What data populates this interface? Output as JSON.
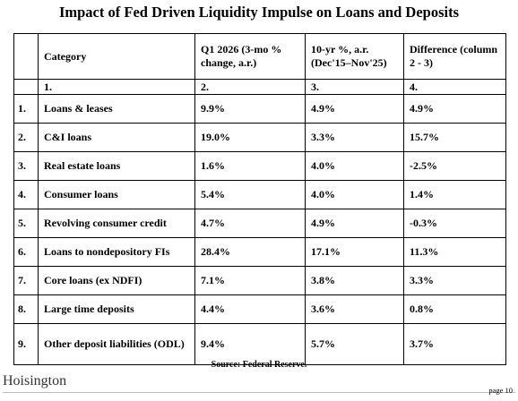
{
  "title": "Impact of Fed Driven Liquidity Impulse on Loans and Deposits",
  "table": {
    "header": [
      "Category",
      "Q1 2026  (3-mo % change, a.r.)",
      "10-yr  %, a.r. (Dec'15–Nov'25)",
      "Difference (column 2 - 3)"
    ],
    "column_numbers": [
      "1.",
      "2.",
      "3.",
      "4."
    ],
    "rows": [
      [
        "1.",
        "Loans & leases",
        "9.9%",
        "4.9%",
        "4.9%"
      ],
      [
        "2.",
        "C&I loans",
        "19.0%",
        "3.3%",
        "15.7%"
      ],
      [
        "3.",
        "Real estate loans",
        "1.6%",
        "4.0%",
        "-2.5%"
      ],
      [
        "4.",
        "Consumer loans",
        "5.4%",
        "4.0%",
        "1.4%"
      ],
      [
        "5.",
        "Revolving consumer credit",
        "4.7%",
        "4.9%",
        "-0.3%"
      ],
      [
        "6.",
        "Loans to nondepository FIs",
        "28.4%",
        "17.1%",
        "11.3%"
      ],
      [
        "7.",
        "Core loans (ex NDFI)",
        "7.1%",
        "3.8%",
        "3.3%"
      ],
      [
        "8.",
        "Large time deposits",
        "4.4%",
        "3.6%",
        "0.8%"
      ],
      [
        "9.",
        "Other deposit liabilities (ODL)",
        "9.4%",
        "5.7%",
        "3.7%"
      ]
    ]
  },
  "source": "Source: Federal Reserve.",
  "logo": "Hoisington",
  "page": "page 10"
}
